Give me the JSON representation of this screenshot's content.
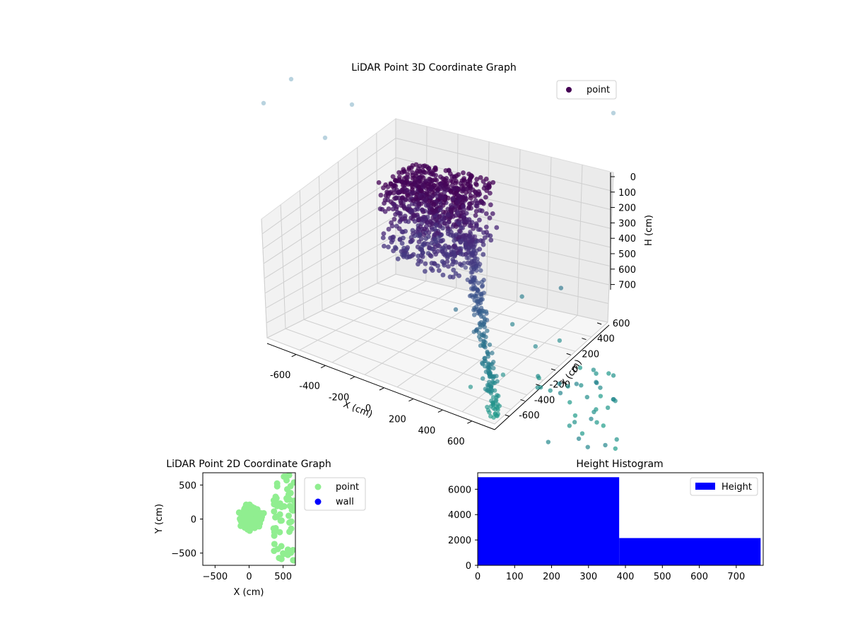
{
  "chart_data": [
    {
      "type": "scatter3d",
      "title": "LiDAR Point 3D Coordinate Graph",
      "xlabel": "X (cm)",
      "ylabel": "Y (cm)",
      "zlabel": "H (cm)",
      "xlim": [
        -700,
        700
      ],
      "ylim": [
        -700,
        700
      ],
      "zlim": [
        760,
        0
      ],
      "z_axis_inverted": true,
      "xticks": [
        "-600",
        "-400",
        "-200",
        "0",
        "200",
        "400",
        "600"
      ],
      "yticks": [
        "-600",
        "-400",
        "-200",
        "0",
        "200",
        "400",
        "600"
      ],
      "zticks": [
        "0",
        "100",
        "200",
        "300",
        "400",
        "500",
        "600",
        "700"
      ],
      "grid": true,
      "legend": {
        "placement": "top-right",
        "entries": [
          "point"
        ]
      },
      "colormap": "viridis",
      "series": [
        {
          "name": "point",
          "cluster": {
            "x_range": [
              -300,
              200
            ],
            "y_range": [
              -200,
              300
            ],
            "h_range": [
              0,
              380
            ],
            "count": 6000
          },
          "outliers": [
            {
              "x": 450,
              "y": -500,
              "h": 720
            },
            {
              "x": 550,
              "y": -300,
              "h": 700
            },
            {
              "x": 600,
              "y": 0,
              "h": 650
            },
            {
              "x": 300,
              "y": 400,
              "h": 600
            },
            {
              "x": 500,
              "y": 500,
              "h": 550
            },
            {
              "x": 650,
              "y": 200,
              "h": 680
            },
            {
              "x": 200,
              "y": -200,
              "h": 500
            },
            {
              "x": 400,
              "y": 100,
              "h": 620
            }
          ]
        }
      ]
    },
    {
      "type": "scatter",
      "title": "LiDAR Point 2D Coordinate Graph",
      "xlabel": "X (cm)",
      "ylabel": "Y (cm)",
      "xlim": [
        -680,
        680
      ],
      "ylim": [
        -680,
        680
      ],
      "xticks": [
        "−500",
        "0",
        "500"
      ],
      "yticks": [
        "−500",
        "0",
        "500"
      ],
      "legend": {
        "placement": "outside-right",
        "entries": [
          "point",
          "wall"
        ]
      },
      "series": [
        {
          "name": "point",
          "color": "#90ee90"
        },
        {
          "name": "wall",
          "color": "#0000ff"
        }
      ]
    },
    {
      "type": "bar",
      "title": "Height Histogram",
      "bins": [
        [
          0,
          383
        ],
        [
          383,
          766
        ]
      ],
      "values": [
        6950,
        2150
      ],
      "xlim": [
        0,
        773
      ],
      "ylim": [
        0,
        7300
      ],
      "xticks": [
        "0",
        "100",
        "200",
        "300",
        "400",
        "500",
        "600",
        "700"
      ],
      "yticks": [
        "0",
        "2000",
        "4000",
        "6000"
      ],
      "legend": {
        "placement": "top-right",
        "entries": [
          "Height"
        ]
      },
      "series": [
        {
          "name": "Height",
          "color": "#0000ff"
        }
      ]
    }
  ]
}
